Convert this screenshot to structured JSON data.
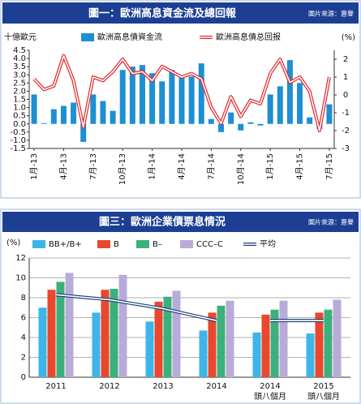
{
  "chart_data": [
    {
      "type": "bar",
      "title": "圖一：歐洲高息資金流及總回報",
      "source": "圖片來源：惠譽",
      "y_label": "十億歐元",
      "y2_label": "(%)",
      "categories": [
        "1月-13",
        null,
        null,
        "4月-13",
        null,
        null,
        "7月-13",
        null,
        null,
        "10月-13",
        null,
        null,
        "1月-14",
        null,
        null,
        "4月-14",
        null,
        null,
        "7月-14",
        null,
        null,
        "10月-14",
        null,
        null,
        "1月-15",
        null,
        null,
        "4月-15",
        null,
        null,
        "7月-15"
      ],
      "series": [
        {
          "name": "歐洲高息債資金流",
          "color": "#1e8fd2",
          "values": [
            1.8,
            0.05,
            0.9,
            1.1,
            1.3,
            -1.1,
            1.8,
            1.4,
            0.8,
            3.3,
            3.5,
            3.6,
            3.1,
            2.6,
            3.3,
            2.9,
            2.9,
            3.7,
            0.3,
            -0.5,
            0.7,
            -0.4,
            0.1,
            -0.1,
            1.8,
            2.3,
            3.9,
            2.5,
            0.4,
            -0.3,
            1.2
          ]
        },
        {
          "name": "歐洲高息債总回报",
          "color": "#e0262b",
          "type": "line",
          "axis": "y2",
          "values": [
            0.9,
            0.3,
            0.5,
            2.2,
            0.8,
            -1.8,
            1.0,
            0.8,
            1.3,
            2.0,
            1.2,
            1.3,
            0.8,
            1.6,
            1.3,
            1.0,
            1.2,
            0.9,
            -0.7,
            -1.6,
            -0.1,
            -1.2,
            -0.3,
            -0.5,
            1.2,
            2.0,
            0.7,
            1.0,
            0.2,
            -2.0,
            1.0
          ]
        }
      ],
      "ylim": [
        -1.5,
        4.5
      ],
      "yticks": [
        4.5,
        {
          "value": 4,
          "label": "4.0"
        },
        3.5,
        {
          "value": 3,
          "label": "3.0"
        },
        2.5,
        {
          "value": 2,
          "label": "2.0"
        },
        1.5,
        {
          "value": 1,
          "label": "1.0"
        },
        0.5,
        {
          "value": 0,
          "label": "0.0"
        },
        -0.5,
        {
          "value": -1,
          "label": "-1.0"
        },
        -1.5
      ],
      "y2lim": [
        -3,
        2.5
      ],
      "y2ticks": [
        2,
        1,
        0,
        -1,
        -2,
        -3
      ],
      "grid": false
    },
    {
      "type": "bar",
      "title": "圖三：歐洲企業債票息情況",
      "source": "圖片來源：惠譽",
      "y_label": "(%)",
      "categories": [
        "2011",
        "2012",
        "2013",
        "2014",
        [
          "2014",
          "頭八個月"
        ],
        [
          "2015",
          "頭八個月"
        ]
      ],
      "series": [
        {
          "name": "BB+/B+",
          "color": "#3db5e8",
          "values": [
            7.0,
            6.5,
            5.6,
            4.7,
            4.5,
            4.4
          ]
        },
        {
          "name": "B",
          "color": "#e8482d",
          "values": [
            8.8,
            8.8,
            7.6,
            6.5,
            6.3,
            6.5
          ]
        },
        {
          "name": "B–",
          "color": "#3cb07c",
          "values": [
            9.6,
            8.9,
            8.1,
            7.2,
            6.8,
            6.8
          ]
        },
        {
          "name": "CCC–C",
          "color": "#b9abd8",
          "values": [
            10.5,
            10.3,
            8.7,
            7.7,
            7.7,
            7.8
          ]
        },
        {
          "name": "平均",
          "color": "#1c3f7a",
          "type": "line",
          "values": [
            8.3,
            7.8,
            6.9,
            5.7,
            5.7,
            5.7
          ]
        }
      ],
      "gap_after": [
        3
      ],
      "ylim": [
        0,
        12
      ],
      "yticks": [
        0,
        2,
        4,
        6,
        8,
        10,
        12
      ],
      "grid": true
    }
  ]
}
